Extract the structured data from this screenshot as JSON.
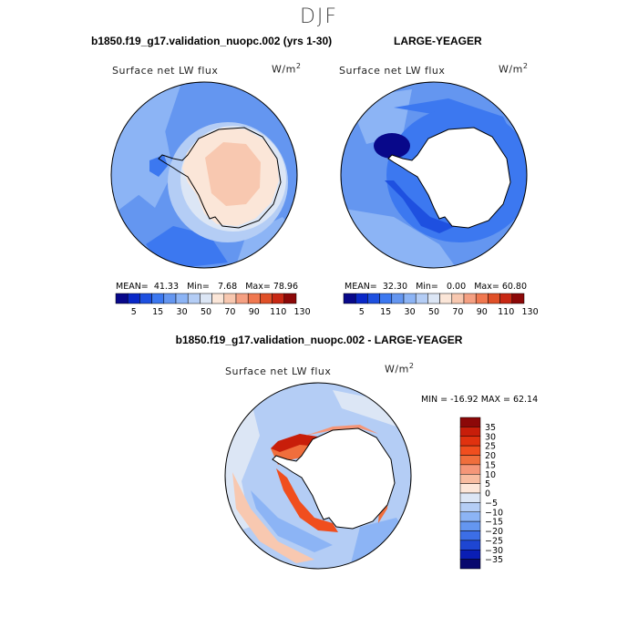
{
  "header": {
    "season": "DJF"
  },
  "panel_left": {
    "title": "b1850.f19_g17.validation_nuopc.002 (yrs 1-30)",
    "variable": "Surface net LW flux",
    "units": "W/m",
    "units_sup": "2",
    "mean_label": "MEAN=",
    "mean": "41.33",
    "min_label": "Min=",
    "min": "7.68",
    "max_label": "Max=",
    "max": "78.96"
  },
  "panel_right": {
    "title": "LARGE-YEAGER",
    "variable": "Surface net LW flux",
    "units": "W/m",
    "units_sup": "2",
    "mean_label": "MEAN=",
    "mean": "32.30",
    "min_label": "Min=",
    "min": "0.00",
    "max_label": "Max=",
    "max": "60.80"
  },
  "panel_diff": {
    "title": "b1850.f19_g17.validation_nuopc.002 - LARGE-YEAGER",
    "variable": "Surface net LW flux",
    "units": "W/m",
    "units_sup": "2",
    "minmax": "MIN = -16.92 MAX =  62.14"
  },
  "colorbar_abs": {
    "labels": [
      "5",
      "15",
      "30",
      "50",
      "70",
      "90",
      "110",
      "130"
    ],
    "colors": [
      "#08088a",
      "#0a28c8",
      "#1e50e0",
      "#3c78f0",
      "#6496f0",
      "#8cb4f5",
      "#b4cdf5",
      "#dce6f5",
      "#fbe6d8",
      "#f8c8b0",
      "#f5a082",
      "#f07850",
      "#e05028",
      "#c82814",
      "#8c0808"
    ]
  },
  "colorbar_diff": {
    "labels": [
      "35",
      "30",
      "25",
      "20",
      "15",
      "10",
      "5",
      "0",
      "−5",
      "−10",
      "−15",
      "−20",
      "−25",
      "−30",
      "−35"
    ],
    "colors": [
      "#8c0808",
      "#c81e0a",
      "#e0320f",
      "#f04e1e",
      "#f06e3c",
      "#f59678",
      "#f8bca0",
      "#fde6d8",
      "#dce6f5",
      "#b4cdf5",
      "#8cb4f5",
      "#6496f0",
      "#3c6ee6",
      "#1e46d2",
      "#0a1eb4",
      "#08086e"
    ]
  }
}
